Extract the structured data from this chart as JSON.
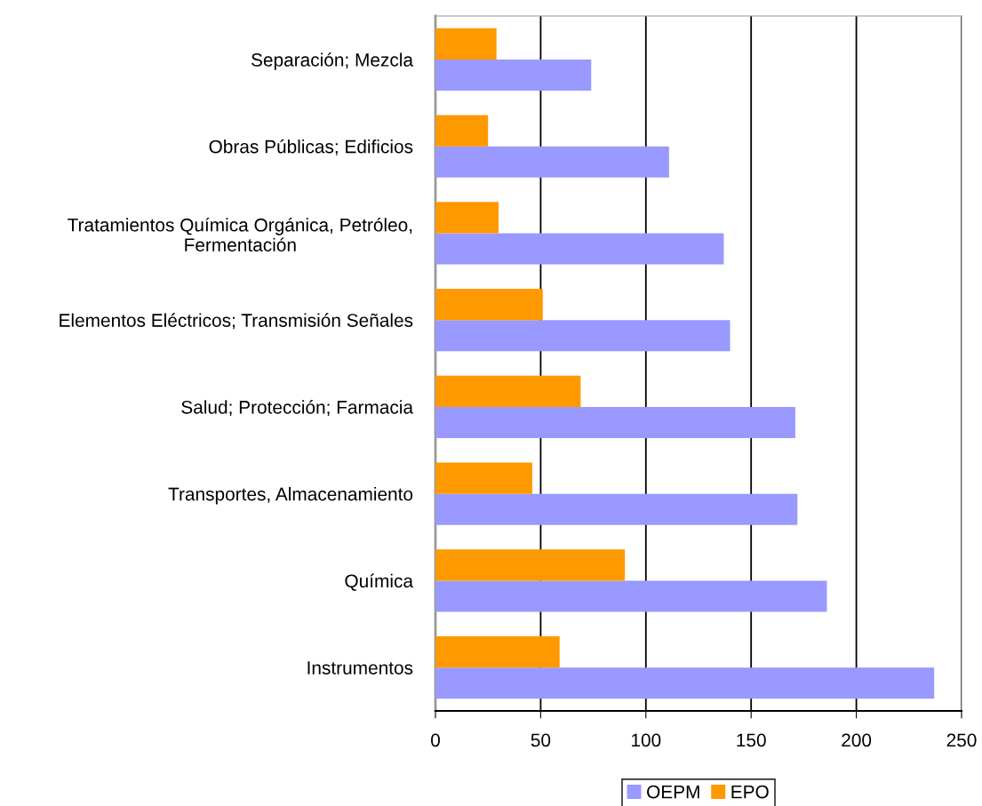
{
  "chart_data": {
    "type": "bar",
    "orientation": "horizontal",
    "categories": [
      "Separación; Mezcla",
      "Obras Públicas; Edificios",
      "Tratamientos Química Orgánica, Petróleo,\nFermentación",
      "Elementos Eléctricos; Transmisión Señales",
      "Salud; Protección; Farmacia",
      "Transportes, Almacenamiento",
      "Química",
      "Instrumentos"
    ],
    "series": [
      {
        "name": "OEPM",
        "color": "#9999ff",
        "values": [
          74,
          111,
          137,
          140,
          171,
          172,
          186,
          237
        ]
      },
      {
        "name": "EPO",
        "color": "#ff9900",
        "values": [
          29,
          25,
          30,
          51,
          69,
          46,
          90,
          59
        ]
      }
    ],
    "xlim": [
      0,
      250
    ],
    "xticks": [
      0,
      50,
      100,
      150,
      200,
      250
    ],
    "grid": "x",
    "legend": "bottom"
  }
}
